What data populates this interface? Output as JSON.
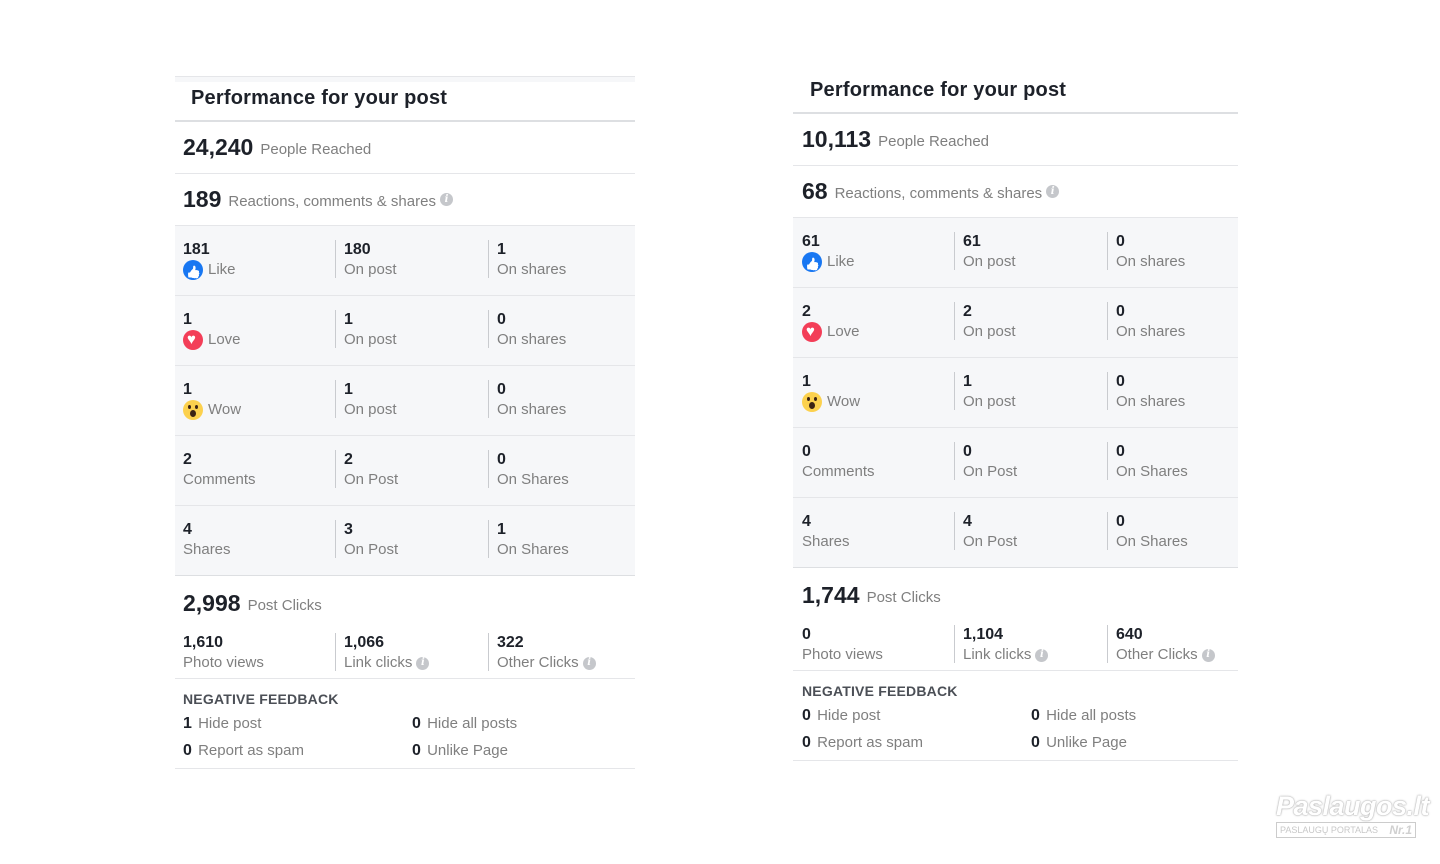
{
  "panels": [
    {
      "title": "Performance for your post",
      "people_reached": {
        "value": "24,240",
        "label": "People Reached"
      },
      "engagement": {
        "value": "189",
        "label": "Reactions, comments & shares"
      },
      "rows": [
        {
          "main": {
            "value": "181",
            "label": "Like",
            "icon": "like-icon"
          },
          "on_post": {
            "value": "180",
            "label": "On post"
          },
          "on_shares": {
            "value": "1",
            "label": "On shares"
          }
        },
        {
          "main": {
            "value": "1",
            "label": "Love",
            "icon": "love-icon"
          },
          "on_post": {
            "value": "1",
            "label": "On post"
          },
          "on_shares": {
            "value": "0",
            "label": "On shares"
          }
        },
        {
          "main": {
            "value": "1",
            "label": "Wow",
            "icon": "wow-icon"
          },
          "on_post": {
            "value": "1",
            "label": "On post"
          },
          "on_shares": {
            "value": "0",
            "label": "On shares"
          }
        },
        {
          "main": {
            "value": "2",
            "label": "Comments"
          },
          "on_post": {
            "value": "2",
            "label": "On Post"
          },
          "on_shares": {
            "value": "0",
            "label": "On Shares"
          }
        },
        {
          "main": {
            "value": "4",
            "label": "Shares"
          },
          "on_post": {
            "value": "3",
            "label": "On Post"
          },
          "on_shares": {
            "value": "1",
            "label": "On Shares"
          }
        }
      ],
      "post_clicks": {
        "value": "2,998",
        "label": "Post Clicks"
      },
      "clicks": [
        {
          "value": "1,610",
          "label": "Photo views"
        },
        {
          "value": "1,066",
          "label": "Link clicks"
        },
        {
          "value": "322",
          "label": "Other Clicks"
        }
      ],
      "negative": {
        "title": "NEGATIVE FEEDBACK",
        "items": [
          {
            "value": "1",
            "label": "Hide post"
          },
          {
            "value": "0",
            "label": "Hide all posts"
          },
          {
            "value": "0",
            "label": "Report as spam"
          },
          {
            "value": "0",
            "label": "Unlike Page"
          }
        ]
      }
    },
    {
      "title": "Performance for your post",
      "people_reached": {
        "value": "10,113",
        "label": "People Reached"
      },
      "engagement": {
        "value": "68",
        "label": "Reactions, comments & shares"
      },
      "rows": [
        {
          "main": {
            "value": "61",
            "label": "Like",
            "icon": "like-icon"
          },
          "on_post": {
            "value": "61",
            "label": "On post"
          },
          "on_shares": {
            "value": "0",
            "label": "On shares"
          }
        },
        {
          "main": {
            "value": "2",
            "label": "Love",
            "icon": "love-icon"
          },
          "on_post": {
            "value": "2",
            "label": "On post"
          },
          "on_shares": {
            "value": "0",
            "label": "On shares"
          }
        },
        {
          "main": {
            "value": "1",
            "label": "Wow",
            "icon": "wow-icon"
          },
          "on_post": {
            "value": "1",
            "label": "On post"
          },
          "on_shares": {
            "value": "0",
            "label": "On shares"
          }
        },
        {
          "main": {
            "value": "0",
            "label": "Comments"
          },
          "on_post": {
            "value": "0",
            "label": "On Post"
          },
          "on_shares": {
            "value": "0",
            "label": "On Shares"
          }
        },
        {
          "main": {
            "value": "4",
            "label": "Shares"
          },
          "on_post": {
            "value": "4",
            "label": "On Post"
          },
          "on_shares": {
            "value": "0",
            "label": "On Shares"
          }
        }
      ],
      "post_clicks": {
        "value": "1,744",
        "label": "Post Clicks"
      },
      "clicks": [
        {
          "value": "0",
          "label": "Photo views"
        },
        {
          "value": "1,104",
          "label": "Link clicks"
        },
        {
          "value": "640",
          "label": "Other Clicks"
        }
      ],
      "negative": {
        "title": "NEGATIVE FEEDBACK",
        "items": [
          {
            "value": "0",
            "label": "Hide post"
          },
          {
            "value": "0",
            "label": "Hide all posts"
          },
          {
            "value": "0",
            "label": "Report as spam"
          },
          {
            "value": "0",
            "label": "Unlike Page"
          }
        ]
      }
    }
  ],
  "watermark": {
    "brand": "Paslaugos.lt",
    "sub": "PASLAUGŲ PORTALAS",
    "badge": "Nr.1"
  }
}
